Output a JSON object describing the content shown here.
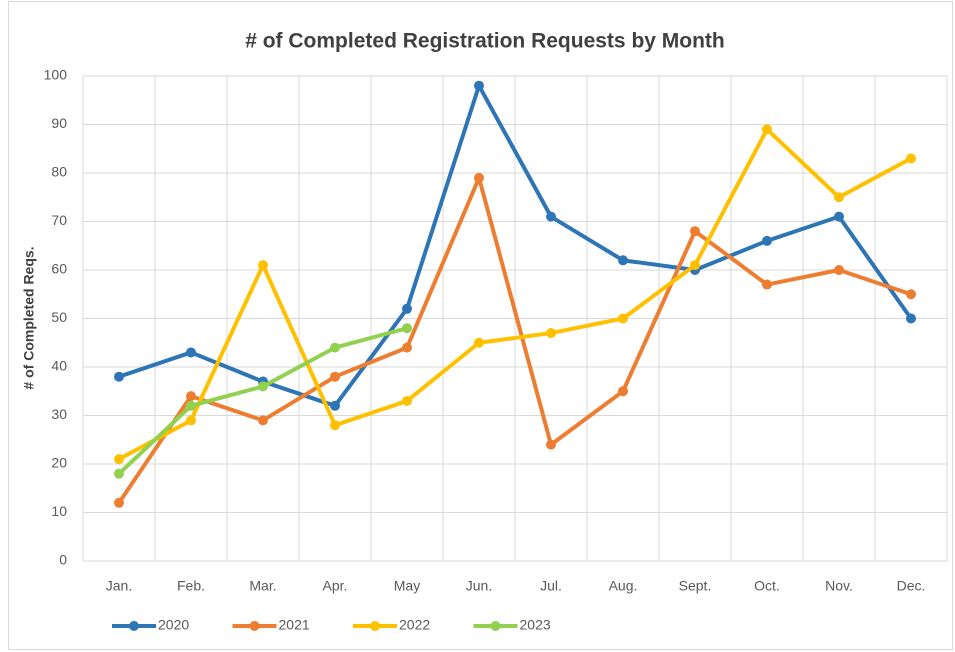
{
  "chart_data": {
    "type": "line",
    "title": "# of Completed Registration Requests by Month",
    "y_label": "# of Completed Reqs.",
    "categories": [
      "Jan.",
      "Feb.",
      "Mar.",
      "Apr.",
      "May",
      "Jun.",
      "Jul.",
      "Aug.",
      "Sept.",
      "Oct.",
      "Nov.",
      "Dec."
    ],
    "series": [
      {
        "name": "2020",
        "color": "#2e75b6",
        "values": [
          38,
          43,
          37,
          32,
          52,
          98,
          71,
          62,
          60,
          66,
          71,
          50
        ]
      },
      {
        "name": "2021",
        "color": "#ed7d31",
        "values": [
          12,
          34,
          29,
          38,
          44,
          79,
          24,
          35,
          68,
          57,
          60,
          55
        ]
      },
      {
        "name": "2022",
        "color": "#ffc000",
        "values": [
          21,
          29,
          61,
          28,
          33,
          45,
          47,
          50,
          61,
          89,
          75,
          83
        ]
      },
      {
        "name": "2023",
        "color": "#92d050",
        "values": [
          18,
          32,
          36,
          44,
          48,
          null,
          null,
          null,
          null,
          null,
          null,
          null
        ]
      }
    ],
    "ylim": [
      0,
      100
    ],
    "yticks": [
      0,
      10,
      20,
      30,
      40,
      50,
      60,
      70,
      80,
      90,
      100
    ],
    "grid": true,
    "legend": "bottom"
  }
}
